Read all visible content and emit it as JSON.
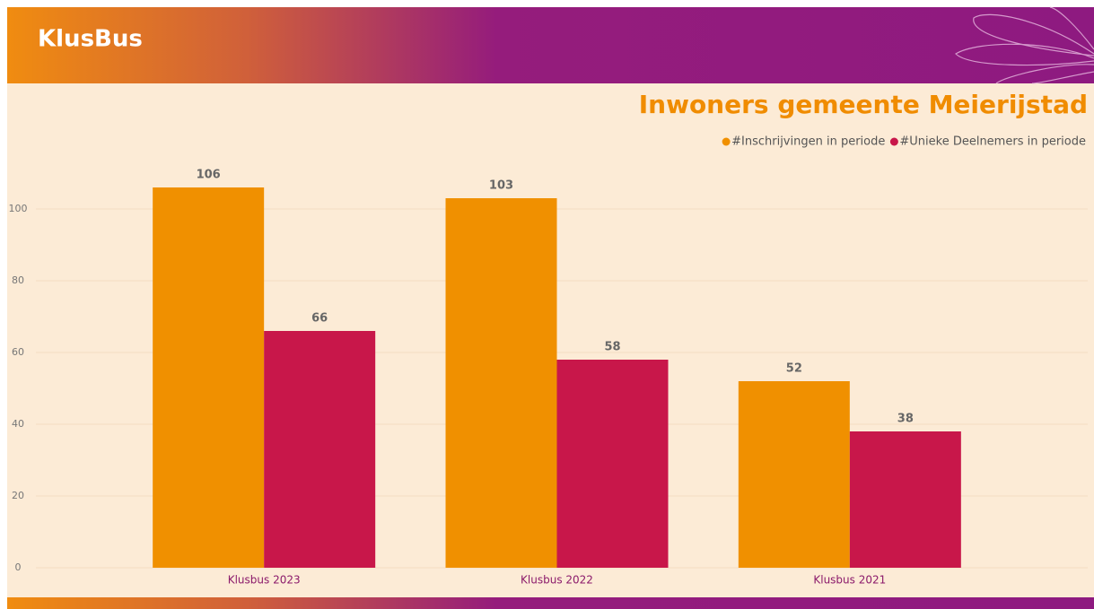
{
  "header": {
    "brand": "KlusBus"
  },
  "chart_data": {
    "type": "bar",
    "title": "Inwoners gemeente Meierijstad",
    "categories": [
      "Klusbus 2023",
      "Klusbus 2022",
      "Klusbus 2021"
    ],
    "series": [
      {
        "name": "#Inschrijvingen in periode",
        "color": "#f09000",
        "values": [
          106,
          103,
          52
        ]
      },
      {
        "name": "#Unieke Deelnemers in periode",
        "color": "#c8174a",
        "values": [
          66,
          58,
          38
        ]
      }
    ],
    "ylim": [
      0,
      110
    ],
    "yticks": [
      0,
      20,
      40,
      60,
      80,
      100
    ],
    "grid": true,
    "legend": "top-right"
  }
}
